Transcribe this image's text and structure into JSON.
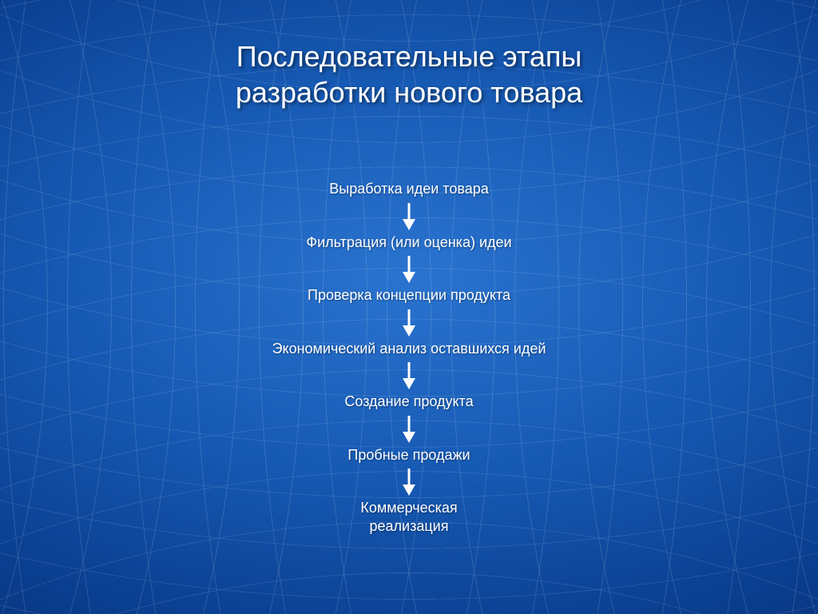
{
  "title": "Последовательные этапы\nразработки нового товара",
  "flowchart": {
    "type": "flowchart",
    "direction": "vertical",
    "text_color": "#ffffff",
    "arrow_color": "#ffffff",
    "title_fontsize": 36,
    "step_fontsize": 18,
    "arrow_length": 26,
    "arrow_head_width": 16,
    "arrow_stroke_width": 3,
    "background": {
      "type": "radial-globe-grid",
      "colors": [
        "#2a74d0",
        "#1659b3",
        "#0a3e8f",
        "#062a6a",
        "#041d4b"
      ],
      "grid_line_color": "#ffffff",
      "grid_line_opacity": 0.22
    },
    "steps": [
      "Выработка идеи товара",
      "Фильтрация (или оценка) идеи",
      "Проверка концепции продукта",
      "Экономический анализ оставшихся идей",
      "Создание продукта",
      "Пробные продажи",
      "Коммерческая\nреализация"
    ]
  }
}
